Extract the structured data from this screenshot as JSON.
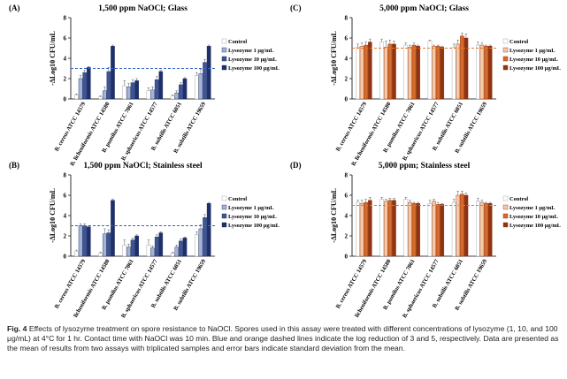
{
  "figure": {
    "caption_label": "Fig. 4",
    "caption_text": "Effects of lysozyme treatment on spore resistance to NaOCl. Spores used in this assay were treated with different concentrations of lysozyme (1, 10, and 100 μg/mL) at 4°C for 1 hr. Contact time with NaOCl was 10 min. Blue and orange dashed lines indicate the log reduction of 3 and 5, respectively. Data are presented as the mean of results from two assays with triplicated samples and error bars indicate standard deviation from the mean."
  },
  "colors": {
    "blue_series": [
      "#ffffff",
      "#a4b4d4",
      "#3e5693",
      "#1e2f6a"
    ],
    "blue_edge": "#1e2f6a",
    "orange_series": [
      "#ffffff",
      "#f6c9a6",
      "#d56a2a",
      "#8f3310"
    ],
    "orange_edge": "#8f3310",
    "blue_line": "#3264c8",
    "orange_line": "#e07a30"
  },
  "chart_data": [
    {
      "panel": "(A)",
      "type": "bar",
      "title": "1,500 ppm NaOCl; Glass",
      "ylabel": "-ΔLog10 CFU/mL",
      "ylim": [
        0,
        8
      ],
      "yticks": [
        "0",
        "2",
        "4",
        "6",
        "8"
      ],
      "palette": "blue",
      "reference_line": 3,
      "categories": [
        "B. cereus ATCC 14579",
        "B. licheniformis ATCC 14580",
        "B. pumilus ATCC 7061",
        "B. sphaericus ATCC 14577",
        "B. subtilis ATCC 6051",
        "B. subtilis ATCC 19659"
      ],
      "series": [
        {
          "name": "Control",
          "values": [
            0.4,
            0.2,
            1.3,
            0.8,
            0.3,
            2.3
          ],
          "errors": [
            0.1,
            0.1,
            0.5,
            0.3,
            0.1,
            0.3
          ]
        },
        {
          "name": "Lysozyme 1 μg/mL",
          "values": [
            2.0,
            0.8,
            1.2,
            0.9,
            0.6,
            2.5
          ],
          "errors": [
            0.3,
            0.4,
            0.3,
            0.3,
            0.2,
            0.4
          ]
        },
        {
          "name": "Lysozyme 10 μg/mL",
          "values": [
            2.6,
            2.7,
            1.6,
            1.9,
            1.4,
            3.6
          ],
          "errors": [
            0.2,
            0.4,
            0.3,
            0.3,
            0.2,
            0.3
          ]
        },
        {
          "name": "Lysozyme 100 μg/mL",
          "values": [
            3.1,
            5.2,
            1.8,
            2.7,
            2.0,
            5.2
          ],
          "errors": [
            0.1,
            0.1,
            0.2,
            0.1,
            0.1,
            0.1
          ]
        }
      ]
    },
    {
      "panel": "(B)",
      "type": "bar",
      "title": "1,500 ppm NaOCl; Stainless steel",
      "ylabel": "-ΔLog10 CFU/mL",
      "ylim": [
        0,
        8
      ],
      "yticks": [
        "0",
        "2",
        "4",
        "6",
        "8"
      ],
      "palette": "blue",
      "reference_line": 3,
      "categories": [
        "B. cereus ATCC 14579",
        "B. licheniformis ATCC 14580",
        "B. pumilus ATCC 7061",
        "B. sphaericus ATCC 14577",
        "B. subtilis ATCC 6051",
        "B. subtilis ATCC 19659"
      ],
      "series": [
        {
          "name": "Control",
          "values": [
            0.5,
            0.3,
            1.1,
            1.1,
            0.3,
            2.1
          ],
          "errors": [
            0.1,
            0.1,
            0.5,
            0.5,
            0.1,
            0.3
          ]
        },
        {
          "name": "Lysozyme 1 μg/mL",
          "values": [
            3.0,
            2.2,
            0.9,
            0.8,
            0.9,
            2.7
          ],
          "errors": [
            0.2,
            0.5,
            0.3,
            0.2,
            0.2,
            0.4
          ]
        },
        {
          "name": "Lysozyme 10 μg/mL",
          "values": [
            3.0,
            2.3,
            1.6,
            1.9,
            1.5,
            3.8
          ],
          "errors": [
            0.2,
            0.3,
            0.2,
            0.2,
            0.2,
            0.3
          ]
        },
        {
          "name": "Lysozyme 100 μg/mL",
          "values": [
            2.9,
            5.5,
            2.0,
            2.3,
            1.8,
            5.2
          ],
          "errors": [
            0.1,
            0.1,
            0.1,
            0.1,
            0.1,
            0.1
          ]
        }
      ]
    },
    {
      "panel": "(C)",
      "type": "bar",
      "title": "5,000 ppm NaOCl; Glass",
      "ylabel": "-ΔLog10 CFU/mL",
      "ylim": [
        0,
        8
      ],
      "yticks": [
        "0",
        "2",
        "4",
        "6",
        "8"
      ],
      "palette": "orange",
      "reference_line": 5,
      "categories": [
        "B. cereus ATCC 14579",
        "B. licheniformis ATCC 14580",
        "B. pumilus ATCC 7061",
        "B. sphaericus ATCC 14577",
        "B. subtilis ATCC 6051",
        "B. subtilis ATCC 19659"
      ],
      "series": [
        {
          "name": "Control",
          "values": [
            5.1,
            5.6,
            5.3,
            5.7,
            5.1,
            5.3
          ],
          "errors": [
            0.3,
            0.3,
            0.2,
            0.1,
            0.3,
            0.3
          ]
        },
        {
          "name": "Lysozyme 1 μg/mL",
          "values": [
            5.2,
            5.1,
            5.1,
            5.2,
            5.4,
            5.3
          ],
          "errors": [
            0.3,
            0.6,
            0.2,
            0.1,
            0.4,
            0.2
          ]
        },
        {
          "name": "Lysozyme 10 μg/mL",
          "values": [
            5.3,
            5.4,
            5.3,
            5.2,
            6.2,
            5.2
          ],
          "errors": [
            0.3,
            0.4,
            0.2,
            0.1,
            0.3,
            0.1
          ]
        },
        {
          "name": "Lysozyme 100 μg/mL",
          "values": [
            5.6,
            5.4,
            5.2,
            5.1,
            6.0,
            5.2
          ],
          "errors": [
            0.3,
            0.3,
            0.1,
            0.1,
            0.4,
            0.1
          ]
        }
      ]
    },
    {
      "panel": "(D)",
      "type": "bar",
      "title": "5,000 ppm; Stainless steel",
      "ylabel": "-ΔLog10 CFU/mL",
      "ylim": [
        0,
        8
      ],
      "yticks": [
        "0",
        "2",
        "4",
        "6",
        "8"
      ],
      "palette": "orange",
      "reference_line": 5,
      "categories": [
        "B. cereus ATCC 14579",
        "B. licheniformis ATCC 14580",
        "B. pumilus ATCC 7061",
        "B. sphaericus ATCC 14577",
        "B. subtilis ATCC 6051",
        "B. subtilis ATCC 19659"
      ],
      "series": [
        {
          "name": "Control",
          "values": [
            5.3,
            5.6,
            5.6,
            5.2,
            5.3,
            5.4
          ],
          "errors": [
            0.2,
            0.2,
            0.2,
            0.3,
            0.3,
            0.3
          ]
        },
        {
          "name": "Lysozyme 1 μg/mL",
          "values": [
            5.2,
            5.4,
            5.3,
            5.4,
            6.0,
            5.3
          ],
          "errors": [
            0.3,
            0.2,
            0.2,
            0.2,
            0.4,
            0.2
          ]
        },
        {
          "name": "Lysozyme 10 μg/mL",
          "values": [
            5.3,
            5.5,
            5.2,
            5.1,
            6.1,
            5.2
          ],
          "errors": [
            0.3,
            0.2,
            0.1,
            0.2,
            0.3,
            0.1
          ]
        },
        {
          "name": "Lysozyme 100 μg/mL",
          "values": [
            5.5,
            5.5,
            5.2,
            5.1,
            6.0,
            5.2
          ],
          "errors": [
            0.3,
            0.2,
            0.1,
            0.1,
            0.2,
            0.1
          ]
        }
      ]
    }
  ]
}
